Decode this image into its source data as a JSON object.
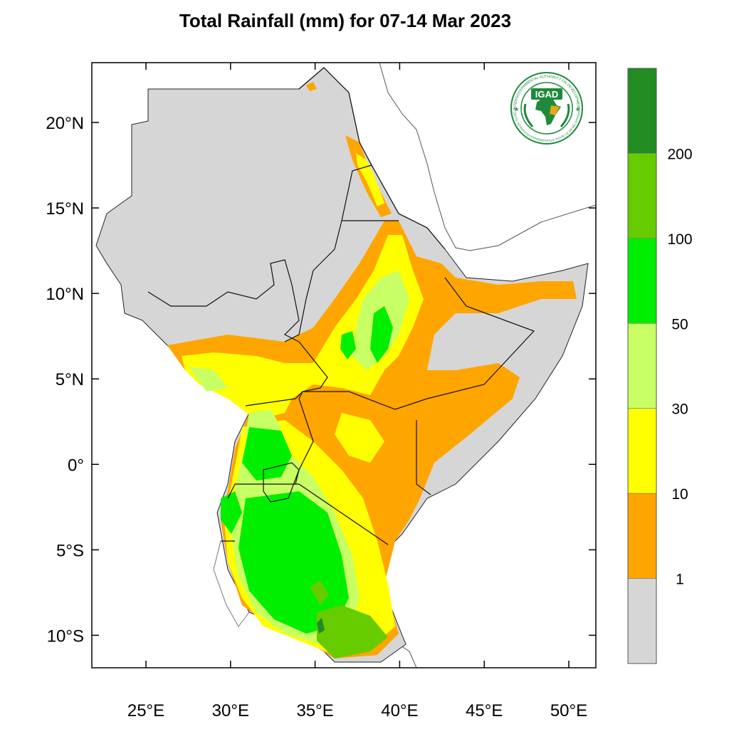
{
  "title": "Total Rainfall (mm) for 07-14 Mar 2023",
  "map": {
    "region": "Greater Horn of Africa",
    "lon_range": [
      21.8,
      51.6
    ],
    "lat_range": [
      -11.9,
      23.5
    ],
    "lon_ticks": [
      {
        "value": 25,
        "label": "25°E"
      },
      {
        "value": 30,
        "label": "30°E"
      },
      {
        "value": 35,
        "label": "35°E"
      },
      {
        "value": 40,
        "label": "40°E"
      },
      {
        "value": 45,
        "label": "45°E"
      },
      {
        "value": 50,
        "label": "50°E"
      }
    ],
    "lat_ticks": [
      {
        "value": 20,
        "label": "20°N"
      },
      {
        "value": 15,
        "label": "15°N"
      },
      {
        "value": 10,
        "label": "10°N"
      },
      {
        "value": 5,
        "label": "5°N"
      },
      {
        "value": 0,
        "label": "0°"
      },
      {
        "value": -5,
        "label": "5°S"
      },
      {
        "value": -10,
        "label": "10°S"
      }
    ]
  },
  "legend": {
    "bins": [
      {
        "range": "<1",
        "color": "#d6d6d6"
      },
      {
        "range": "1-10",
        "color": "#ffa500"
      },
      {
        "range": "10-30",
        "color": "#ffff00"
      },
      {
        "range": "30-50",
        "color": "#c8ff64"
      },
      {
        "range": "50-100",
        "color": "#00ee00"
      },
      {
        "range": "100-200",
        "color": "#66cc00"
      },
      {
        "range": ">200",
        "color": "#228b22"
      }
    ],
    "labels": [
      "1",
      "10",
      "30",
      "50",
      "100",
      "200"
    ]
  },
  "logo": {
    "text": "IGAD",
    "ring_text_top": "INTERGOVERNMENTAL AUTHORITY ON DEVELOPMENT",
    "ring_text_bottom": "AUTORITE INTERGOUVERNEMENTALE POUR LE DEVELOPPEMENT",
    "color": "#1f8a3b"
  }
}
